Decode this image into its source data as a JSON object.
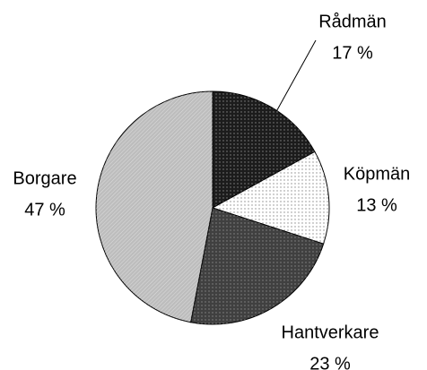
{
  "chart_data": {
    "type": "pie",
    "categories": [
      "Rådmän",
      "Köpmän",
      "Hantverkare",
      "Borgare"
    ],
    "values": [
      17,
      13,
      23,
      47
    ],
    "value_labels": [
      "17 %",
      "13 %",
      "23 %",
      "47 %"
    ],
    "colors": [
      "#1c1c1c",
      "#ffffff",
      "#404040",
      "#bdbdbd"
    ]
  }
}
